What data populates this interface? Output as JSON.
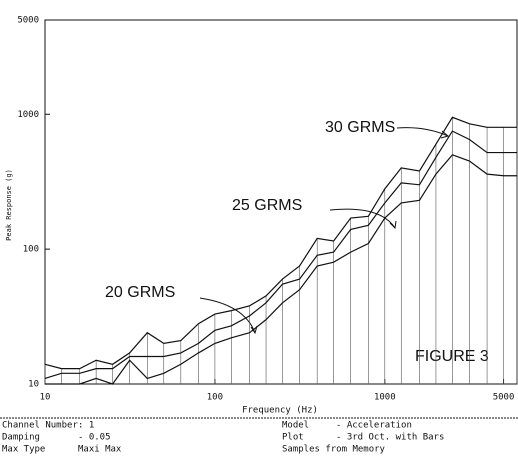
{
  "chart_data": {
    "type": "line",
    "x_label": "Frequency (Hz)",
    "y_label": "Peak Response (g)",
    "log_x": true,
    "log_y": true,
    "xlim": [
      10,
      6000
    ],
    "ylim": [
      10,
      5000
    ],
    "xticks": [
      10,
      100,
      1000,
      5000
    ],
    "yticks": [
      10,
      100,
      1000,
      5000
    ],
    "x": [
      10,
      12.5,
      16,
      20,
      25,
      31.5,
      40,
      50,
      63,
      80,
      100,
      125,
      160,
      200,
      250,
      315,
      400,
      500,
      630,
      800,
      1000,
      1250,
      1600,
      2000,
      2500,
      3150,
      4000,
      5000,
      6000
    ],
    "series": [
      {
        "name": "30 GRMS",
        "color": "#111111",
        "values": [
          14,
          13,
          13,
          15,
          14,
          17,
          24,
          20,
          21,
          28,
          33,
          35,
          38,
          45,
          60,
          75,
          120,
          115,
          170,
          175,
          280,
          400,
          380,
          600,
          950,
          850,
          800,
          800,
          800
        ]
      },
      {
        "name": "25 GRMS",
        "color": "#111111",
        "values": [
          11,
          12,
          12,
          13,
          13,
          16,
          16,
          16,
          17,
          20,
          25,
          27,
          32,
          40,
          55,
          60,
          90,
          95,
          140,
          150,
          220,
          310,
          300,
          480,
          750,
          650,
          520,
          520,
          520
        ]
      },
      {
        "name": "20 GRMS",
        "color": "#111111",
        "values": [
          10,
          10,
          10,
          11,
          10,
          15,
          11,
          12,
          14,
          17,
          20,
          22,
          24,
          30,
          40,
          50,
          75,
          80,
          95,
          110,
          170,
          220,
          230,
          360,
          500,
          450,
          360,
          350,
          350
        ]
      }
    ],
    "bars": true,
    "figure_label": "FIGURE 3",
    "footer": {
      "left": [
        [
          "Channel Number",
          ": 1"
        ],
        [
          "Damping",
          "- 0.05"
        ],
        [
          "Max Type",
          "Maxi Max"
        ]
      ],
      "right": [
        [
          "Model",
          "- Acceleration"
        ],
        [
          "Plot",
          "- 3rd Oct. with Bars"
        ],
        [
          "Samples from Memory",
          ""
        ]
      ]
    }
  }
}
